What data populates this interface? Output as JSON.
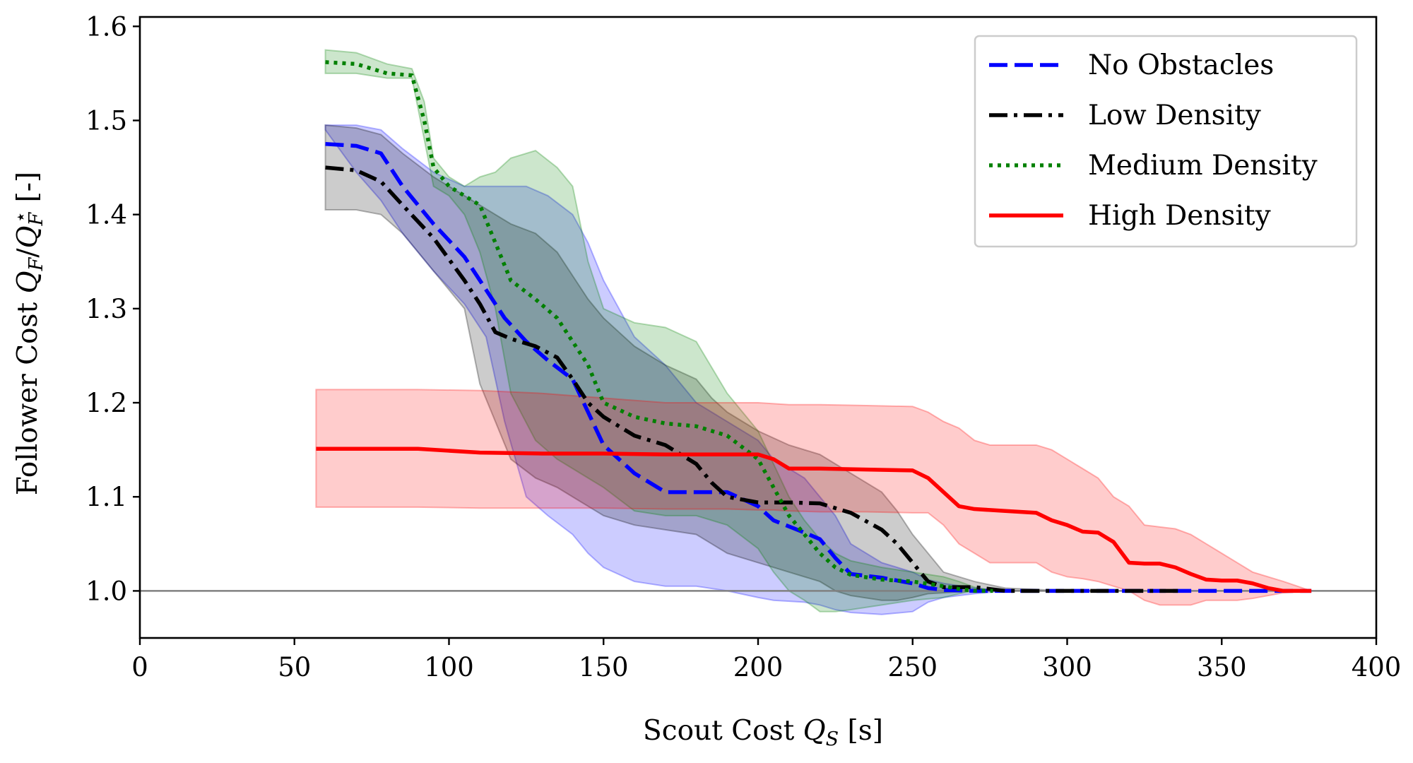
{
  "chart_data": {
    "type": "line",
    "title": "",
    "xlabel": "Scout Cost Q_S [s]",
    "ylabel": "Follower Cost Q_F/Q_F* [-]",
    "xlabel_parts": {
      "pre": "Scout Cost ",
      "sym": "Q",
      "sub": "S",
      "post": " [s]"
    },
    "ylabel_parts": {
      "pre": "Follower Cost ",
      "sym1": "Q",
      "sub1": "F",
      "slash": "/",
      "sym2": "Q",
      "sub2": "F",
      "sup2": "⋆",
      "post": " [-]"
    },
    "xlim": [
      0,
      400
    ],
    "ylim": [
      0.95,
      1.61
    ],
    "xticks": [
      0,
      50,
      100,
      150,
      200,
      250,
      300,
      350,
      400
    ],
    "yticks": [
      1.0,
      1.1,
      1.2,
      1.3,
      1.4,
      1.5,
      1.6
    ],
    "xtick_labels": [
      "0",
      "50",
      "100",
      "150",
      "200",
      "250",
      "300",
      "350",
      "400"
    ],
    "ytick_labels": [
      "1.0",
      "1.1",
      "1.2",
      "1.3",
      "1.4",
      "1.5",
      "1.6"
    ],
    "reference_line": 1.0,
    "grid": false,
    "legend_position": "top-right",
    "series": [
      {
        "name": "No Obstacles",
        "color": "#0000ff",
        "style": "dashed",
        "x": [
          60,
          70,
          78,
          85,
          95,
          105,
          112,
          118,
          125,
          132,
          140,
          145,
          150,
          160,
          170,
          180,
          190,
          200,
          205,
          215,
          220,
          225,
          230,
          240,
          250,
          255,
          260,
          270,
          280,
          290,
          300,
          320,
          340,
          360,
          368,
          372,
          379
        ],
        "y": [
          1.475,
          1.473,
          1.465,
          1.43,
          1.39,
          1.355,
          1.32,
          1.29,
          1.265,
          1.245,
          1.225,
          1.19,
          1.155,
          1.125,
          1.105,
          1.105,
          1.105,
          1.09,
          1.075,
          1.062,
          1.055,
          1.035,
          1.018,
          1.014,
          1.008,
          1.003,
          1.001,
          1.0,
          1.0,
          1.0,
          1.0,
          1.0,
          1.0,
          1.0,
          1.0,
          1.0,
          1.0
        ],
        "lower": [
          1.49,
          1.445,
          1.415,
          1.38,
          1.34,
          1.305,
          1.27,
          1.18,
          1.1,
          1.08,
          1.06,
          1.04,
          1.025,
          1.01,
          1.005,
          1.005,
          1.0,
          0.993,
          0.99,
          0.988,
          0.985,
          0.98,
          0.977,
          0.975,
          0.978,
          0.988,
          0.993,
          0.997,
          1.0,
          1.0,
          1.0,
          1.0,
          1.0,
          1.0,
          1.0,
          1.0,
          1.0
        ],
        "upper": [
          1.495,
          1.495,
          1.49,
          1.47,
          1.445,
          1.43,
          1.43,
          1.43,
          1.43,
          1.42,
          1.4,
          1.37,
          1.33,
          1.27,
          1.24,
          1.2,
          1.18,
          1.16,
          1.14,
          1.12,
          1.1,
          1.08,
          1.05,
          1.03,
          1.02,
          1.012,
          1.008,
          1.003,
          1.0,
          1.0,
          1.0,
          1.0,
          1.0,
          1.0,
          1.0,
          1.0,
          1.0
        ]
      },
      {
        "name": "Low Density",
        "color": "#000000",
        "style": "dashdot",
        "x": [
          60,
          70,
          78,
          85,
          95,
          105,
          110,
          115,
          120,
          128,
          135,
          140,
          145,
          150,
          160,
          170,
          180,
          185,
          190,
          200,
          210,
          220,
          225,
          230,
          240,
          245,
          250,
          255,
          260,
          270,
          280,
          300,
          320,
          336
        ],
        "y": [
          1.45,
          1.447,
          1.435,
          1.41,
          1.375,
          1.33,
          1.305,
          1.275,
          1.268,
          1.26,
          1.248,
          1.225,
          1.2,
          1.185,
          1.165,
          1.155,
          1.135,
          1.115,
          1.1,
          1.094,
          1.094,
          1.093,
          1.088,
          1.083,
          1.065,
          1.05,
          1.03,
          1.01,
          1.004,
          1.004,
          1.0,
          1.0,
          1.0,
          1.0
        ],
        "lower": [
          1.405,
          1.405,
          1.4,
          1.38,
          1.34,
          1.3,
          1.22,
          1.18,
          1.14,
          1.12,
          1.11,
          1.1,
          1.09,
          1.08,
          1.07,
          1.065,
          1.06,
          1.05,
          1.04,
          1.03,
          1.02,
          1.01,
          1.0,
          0.995,
          0.99,
          0.99,
          0.993,
          0.997,
          0.998,
          1.0,
          1.0,
          1.0,
          1.0,
          1.0
        ],
        "upper": [
          1.495,
          1.492,
          1.485,
          1.465,
          1.44,
          1.42,
          1.41,
          1.4,
          1.39,
          1.38,
          1.36,
          1.335,
          1.31,
          1.29,
          1.26,
          1.24,
          1.225,
          1.205,
          1.19,
          1.17,
          1.155,
          1.145,
          1.135,
          1.125,
          1.105,
          1.085,
          1.06,
          1.04,
          1.02,
          1.01,
          1.003,
          1.0,
          1.0,
          1.0
        ]
      },
      {
        "name": "Medium Density",
        "color": "#008000",
        "style": "dotted",
        "x": [
          60,
          70,
          80,
          88,
          92,
          95,
          100,
          105,
          110,
          115,
          120,
          128,
          135,
          140,
          145,
          150,
          160,
          170,
          180,
          190,
          200,
          205,
          210,
          215,
          220,
          225,
          230,
          240,
          250,
          260,
          265,
          270,
          276
        ],
        "y": [
          1.562,
          1.56,
          1.55,
          1.548,
          1.5,
          1.45,
          1.43,
          1.42,
          1.41,
          1.37,
          1.33,
          1.31,
          1.29,
          1.265,
          1.24,
          1.2,
          1.185,
          1.178,
          1.175,
          1.165,
          1.14,
          1.11,
          1.08,
          1.06,
          1.04,
          1.025,
          1.017,
          1.012,
          1.01,
          1.005,
          1.002,
          1.0,
          1.0
        ],
        "lower": [
          1.55,
          1.55,
          1.545,
          1.545,
          1.48,
          1.43,
          1.42,
          1.4,
          1.36,
          1.3,
          1.21,
          1.16,
          1.14,
          1.13,
          1.12,
          1.11,
          1.085,
          1.08,
          1.08,
          1.07,
          1.045,
          1.02,
          1.0,
          0.99,
          0.978,
          0.978,
          0.98,
          0.985,
          0.99,
          0.993,
          0.997,
          1.0,
          1.0
        ],
        "upper": [
          1.575,
          1.572,
          1.56,
          1.555,
          1.52,
          1.46,
          1.44,
          1.43,
          1.44,
          1.445,
          1.46,
          1.468,
          1.45,
          1.43,
          1.35,
          1.3,
          1.285,
          1.28,
          1.265,
          1.21,
          1.17,
          1.135,
          1.1,
          1.075,
          1.055,
          1.04,
          1.032,
          1.025,
          1.02,
          1.015,
          1.01,
          1.004,
          1.0
        ]
      },
      {
        "name": "High Density",
        "color": "#ff0000",
        "style": "solid",
        "x": [
          57,
          80,
          90,
          110,
          130,
          150,
          170,
          190,
          200,
          205,
          210,
          220,
          235,
          250,
          255,
          260,
          265,
          270,
          275,
          280,
          290,
          295,
          300,
          305,
          310,
          315,
          320,
          325,
          330,
          335,
          340,
          345,
          350,
          355,
          360,
          365,
          370,
          379
        ],
        "y": [
          1.151,
          1.151,
          1.151,
          1.147,
          1.146,
          1.146,
          1.145,
          1.145,
          1.145,
          1.14,
          1.13,
          1.13,
          1.129,
          1.128,
          1.12,
          1.105,
          1.09,
          1.087,
          1.086,
          1.085,
          1.083,
          1.075,
          1.07,
          1.063,
          1.062,
          1.052,
          1.03,
          1.029,
          1.029,
          1.025,
          1.018,
          1.012,
          1.011,
          1.011,
          1.008,
          1.003,
          1.0,
          1.0
        ],
        "lower": [
          1.089,
          1.089,
          1.089,
          1.088,
          1.088,
          1.088,
          1.087,
          1.087,
          1.086,
          1.086,
          1.085,
          1.084,
          1.084,
          1.083,
          1.083,
          1.07,
          1.05,
          1.04,
          1.03,
          1.03,
          1.03,
          1.02,
          1.015,
          1.013,
          1.01,
          1.005,
          1.0,
          0.99,
          0.985,
          0.985,
          0.985,
          0.99,
          0.99,
          0.99,
          0.992,
          0.995,
          0.998,
          1.0
        ],
        "upper": [
          1.214,
          1.214,
          1.214,
          1.213,
          1.21,
          1.205,
          1.2,
          1.2,
          1.2,
          1.199,
          1.198,
          1.198,
          1.197,
          1.196,
          1.19,
          1.18,
          1.173,
          1.16,
          1.155,
          1.155,
          1.155,
          1.15,
          1.14,
          1.13,
          1.12,
          1.1,
          1.09,
          1.07,
          1.068,
          1.066,
          1.06,
          1.05,
          1.04,
          1.03,
          1.02,
          1.015,
          1.01,
          1.0
        ]
      }
    ]
  }
}
